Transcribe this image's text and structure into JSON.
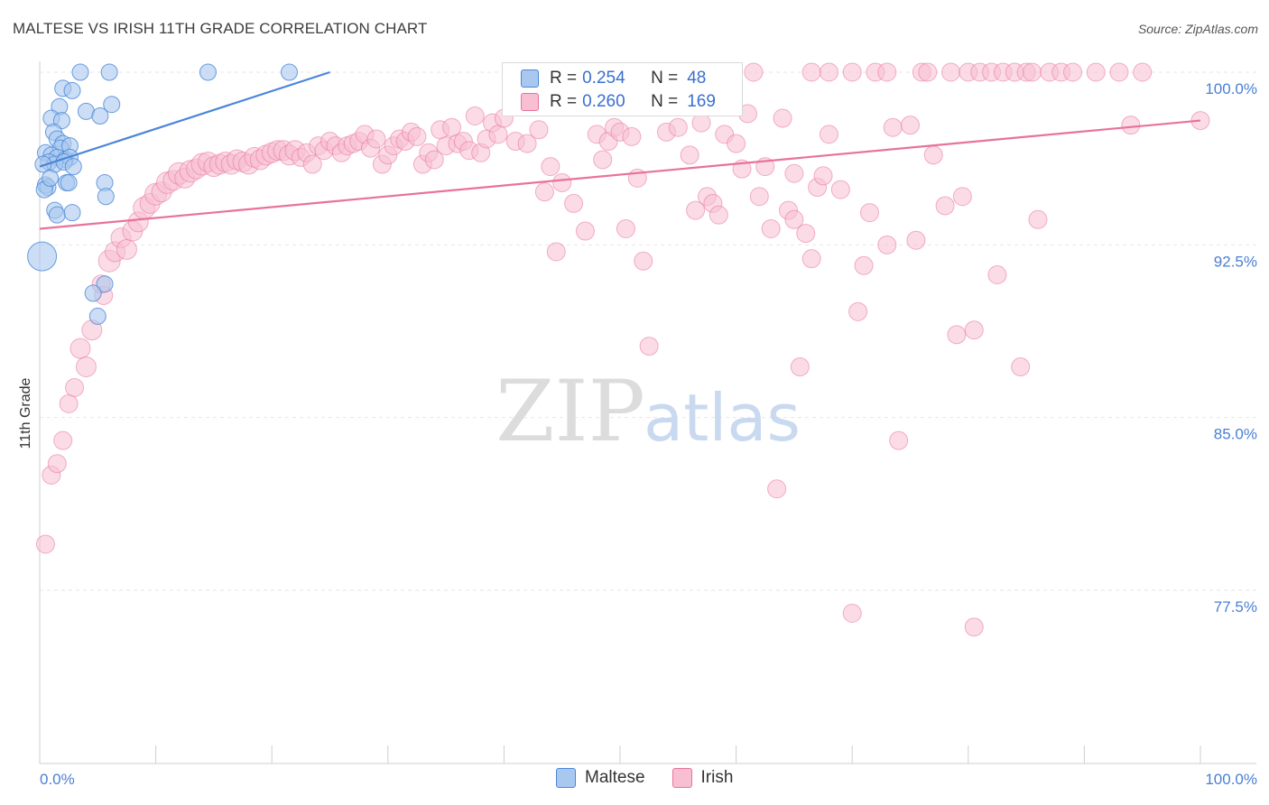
{
  "title": "MALTESE VS IRISH 11TH GRADE CORRELATION CHART",
  "source": "Source: ZipAtlas.com",
  "watermark": {
    "zip": "ZIP",
    "atlas": "atlas"
  },
  "legend": {
    "rows": [
      {
        "r_label": "R =",
        "r_value": "0.254",
        "n_label": "N =",
        "n_value": "48"
      },
      {
        "r_label": "R =",
        "r_value": "0.260",
        "n_label": "N =",
        "n_value": "169"
      }
    ]
  },
  "bottom_legend": {
    "maltese": "Maltese",
    "irish": "Irish"
  },
  "colors": {
    "maltese": "#4a86d8",
    "maltese_fill": "#a9c8ef",
    "irish": "#e8729a",
    "irish_fill": "#f7bfd1",
    "tick": "#4a7fd4"
  },
  "chart_data": {
    "type": "scatter",
    "title": "MALTESE VS IRISH 11TH GRADE CORRELATION CHART",
    "xlabel": "",
    "ylabel": "11th Grade",
    "xlim": [
      0,
      100
    ],
    "ylim": [
      70,
      101.5
    ],
    "x_tick_labels": [
      "0.0%",
      "100.0%"
    ],
    "y_ticks": [
      77.5,
      85.0,
      92.5,
      100.0
    ],
    "y_tick_labels": [
      "77.5%",
      "85.0%",
      "92.5%",
      "100.0%"
    ],
    "grid": true,
    "legend_position": "top-center",
    "series": [
      {
        "name": "Maltese",
        "trend": [
          [
            0,
            95.9
          ],
          [
            25,
            100
          ]
        ],
        "points": [
          [
            3.5,
            100,
            9
          ],
          [
            6,
            100,
            9
          ],
          [
            14.5,
            100,
            9
          ],
          [
            21.5,
            100,
            9
          ],
          [
            2,
            99.3,
            9
          ],
          [
            2.8,
            99.2,
            9
          ],
          [
            1.7,
            98.5,
            9
          ],
          [
            6.2,
            98.6,
            9
          ],
          [
            1,
            98,
            9
          ],
          [
            1.9,
            97.9,
            9
          ],
          [
            4,
            98.3,
            9
          ],
          [
            5.2,
            98.1,
            9
          ],
          [
            1.2,
            97.4,
            9
          ],
          [
            1.5,
            97.1,
            9
          ],
          [
            2,
            96.9,
            9
          ],
          [
            1.8,
            96.7,
            9
          ],
          [
            2.6,
            96.8,
            9
          ],
          [
            0.5,
            96.5,
            9
          ],
          [
            1,
            96.4,
            9
          ],
          [
            1.5,
            96.3,
            9
          ],
          [
            2.2,
            96.2,
            9
          ],
          [
            2.6,
            96.3,
            9
          ],
          [
            0.8,
            96.1,
            9
          ],
          [
            1.3,
            96.0,
            9
          ],
          [
            2.1,
            96.1,
            9
          ],
          [
            2.9,
            95.9,
            9
          ],
          [
            0.3,
            96.0,
            9
          ],
          [
            0.5,
            95.1,
            9
          ],
          [
            0.7,
            95.0,
            9
          ],
          [
            0.4,
            94.9,
            9
          ],
          [
            2.3,
            95.2,
            9
          ],
          [
            5.6,
            95.2,
            9
          ],
          [
            0.9,
            95.4,
            9
          ],
          [
            2.5,
            95.2,
            9
          ],
          [
            1.3,
            94.0,
            9
          ],
          [
            1.5,
            93.8,
            9
          ],
          [
            2.8,
            93.9,
            9
          ],
          [
            5.7,
            94.6,
            9
          ],
          [
            0.2,
            92.0,
            16
          ],
          [
            5.6,
            90.8,
            9
          ],
          [
            4.6,
            90.4,
            9
          ],
          [
            5,
            89.4,
            9
          ]
        ]
      },
      {
        "name": "Irish",
        "trend": [
          [
            0,
            93.2
          ],
          [
            100,
            97.9
          ]
        ],
        "points": [
          [
            0.5,
            79.5,
            10
          ],
          [
            1,
            82.5,
            10
          ],
          [
            1.5,
            83,
            10
          ],
          [
            2,
            84,
            10
          ],
          [
            2.5,
            85.6,
            10
          ],
          [
            3,
            86.3,
            10
          ],
          [
            3.5,
            88,
            11
          ],
          [
            4,
            87.2,
            11
          ],
          [
            4.5,
            88.8,
            11
          ],
          [
            5.5,
            90.3,
            10
          ],
          [
            5.3,
            90.8,
            10
          ],
          [
            6,
            91.8,
            12
          ],
          [
            6.5,
            92.2,
            11
          ],
          [
            7,
            92.8,
            11
          ],
          [
            7.5,
            92.3,
            11
          ],
          [
            8,
            93.1,
            11
          ],
          [
            8.5,
            93.5,
            11
          ],
          [
            9,
            94.1,
            12
          ],
          [
            9.5,
            94.3,
            11
          ],
          [
            10,
            94.7,
            12
          ],
          [
            10.5,
            94.8,
            11
          ],
          [
            11,
            95.2,
            12
          ],
          [
            11.5,
            95.3,
            11
          ],
          [
            12,
            95.6,
            12
          ],
          [
            12.5,
            95.4,
            11
          ],
          [
            13,
            95.7,
            12
          ],
          [
            13.5,
            95.8,
            11
          ],
          [
            14,
            96.0,
            12
          ],
          [
            14.5,
            96.1,
            11
          ],
          [
            15,
            95.9,
            11
          ],
          [
            15.5,
            96.0,
            11
          ],
          [
            16,
            96.1,
            11
          ],
          [
            16.5,
            96.0,
            11
          ],
          [
            17,
            96.2,
            11
          ],
          [
            17.5,
            96.1,
            11
          ],
          [
            18,
            96.0,
            11
          ],
          [
            18.5,
            96.3,
            11
          ],
          [
            19,
            96.2,
            11
          ],
          [
            19.5,
            96.4,
            11
          ],
          [
            20,
            96.5,
            11
          ],
          [
            20.5,
            96.6,
            11
          ],
          [
            21,
            96.6,
            11
          ],
          [
            21.5,
            96.4,
            11
          ],
          [
            22,
            96.6,
            11
          ],
          [
            22.5,
            96.3,
            10
          ],
          [
            23,
            96.5,
            10
          ],
          [
            23.5,
            96.0,
            10
          ],
          [
            24,
            96.8,
            10
          ],
          [
            24.5,
            96.6,
            10
          ],
          [
            25,
            97.0,
            10
          ],
          [
            25.5,
            96.8,
            10
          ],
          [
            26,
            96.5,
            10
          ],
          [
            26.5,
            96.8,
            10
          ],
          [
            27,
            96.9,
            10
          ],
          [
            27.5,
            97.0,
            10
          ],
          [
            28,
            97.3,
            10
          ],
          [
            28.5,
            96.7,
            10
          ],
          [
            29,
            97.1,
            10
          ],
          [
            29.5,
            96.0,
            10
          ],
          [
            30,
            96.4,
            10
          ],
          [
            30.5,
            96.8,
            10
          ],
          [
            31,
            97.1,
            10
          ],
          [
            31.5,
            97.0,
            10
          ],
          [
            32,
            97.4,
            10
          ],
          [
            32.5,
            97.2,
            10
          ],
          [
            33,
            96.0,
            10
          ],
          [
            33.5,
            96.5,
            10
          ],
          [
            34,
            96.2,
            10
          ],
          [
            34.5,
            97.5,
            10
          ],
          [
            35,
            96.8,
            10
          ],
          [
            35.5,
            97.6,
            10
          ],
          [
            36,
            96.9,
            10
          ],
          [
            36.5,
            97.0,
            10
          ],
          [
            37,
            96.6,
            10
          ],
          [
            37.5,
            98.1,
            10
          ],
          [
            38,
            96.5,
            10
          ],
          [
            38.5,
            97.1,
            10
          ],
          [
            39,
            97.8,
            10
          ],
          [
            39.5,
            97.3,
            10
          ],
          [
            40,
            98.0,
            10
          ],
          [
            41,
            97.0,
            10
          ],
          [
            42,
            96.9,
            10
          ],
          [
            43,
            97.5,
            10
          ],
          [
            44,
            95.9,
            10
          ],
          [
            45,
            95.2,
            10
          ],
          [
            46,
            94.3,
            10
          ],
          [
            47,
            93.1,
            10
          ],
          [
            43.5,
            94.8,
            10
          ],
          [
            44.5,
            92.2,
            10
          ],
          [
            47.5,
            99.3,
            10
          ],
          [
            48,
            97.3,
            10
          ],
          [
            48.5,
            96.2,
            10
          ],
          [
            49,
            97.0,
            10
          ],
          [
            49.5,
            97.6,
            10
          ],
          [
            50,
            97.4,
            10
          ],
          [
            51,
            97.2,
            10
          ],
          [
            51.5,
            95.4,
            10
          ],
          [
            50.5,
            93.2,
            10
          ],
          [
            52,
            91.8,
            10
          ],
          [
            52.5,
            88.1,
            10
          ],
          [
            53,
            98.5,
            10
          ],
          [
            54,
            97.4,
            10
          ],
          [
            55,
            97.6,
            10
          ],
          [
            55.5,
            99.4,
            10
          ],
          [
            56,
            96.4,
            10
          ],
          [
            56.5,
            94.0,
            10
          ],
          [
            57,
            97.8,
            10
          ],
          [
            57.5,
            94.6,
            10
          ],
          [
            58,
            94.3,
            10
          ],
          [
            58.5,
            93.8,
            10
          ],
          [
            59,
            97.3,
            10
          ],
          [
            59.5,
            99.8,
            10
          ],
          [
            60,
            96.9,
            10
          ],
          [
            60.5,
            95.8,
            10
          ],
          [
            61,
            98.2,
            10
          ],
          [
            61.5,
            100,
            10
          ],
          [
            62,
            94.6,
            10
          ],
          [
            63,
            93.2,
            10
          ],
          [
            64,
            98.0,
            10
          ],
          [
            64.5,
            94.0,
            10
          ],
          [
            65,
            93.6,
            10
          ],
          [
            65.5,
            87.2,
            10
          ],
          [
            66,
            93.0,
            10
          ],
          [
            66.5,
            100,
            10
          ],
          [
            67,
            95.0,
            10
          ],
          [
            68,
            100,
            10
          ],
          [
            69,
            94.9,
            10
          ],
          [
            70,
            100,
            10
          ],
          [
            70.5,
            89.6,
            10
          ],
          [
            71,
            91.6,
            10
          ],
          [
            71.5,
            93.9,
            10
          ],
          [
            72,
            100,
            10
          ],
          [
            73,
            100,
            10
          ],
          [
            73.5,
            97.6,
            10
          ],
          [
            74,
            84,
            10
          ],
          [
            75,
            97.7,
            10
          ],
          [
            75.5,
            92.7,
            10
          ],
          [
            76,
            100,
            10
          ],
          [
            76.5,
            100,
            10
          ],
          [
            78,
            94.2,
            10
          ],
          [
            78.5,
            100,
            10
          ],
          [
            79,
            88.6,
            10
          ],
          [
            79.5,
            94.6,
            10
          ],
          [
            80,
            100,
            10
          ],
          [
            80.5,
            88.8,
            10
          ],
          [
            81,
            100,
            10
          ],
          [
            82,
            100,
            10
          ],
          [
            82.5,
            91.2,
            10
          ],
          [
            83,
            100,
            10
          ],
          [
            84,
            100,
            10
          ],
          [
            84.5,
            87.2,
            10
          ],
          [
            85,
            100,
            10
          ],
          [
            85.5,
            100,
            10
          ],
          [
            86,
            93.6,
            10
          ],
          [
            87,
            100,
            10
          ],
          [
            88,
            100,
            10
          ],
          [
            89,
            100,
            10
          ],
          [
            91,
            100,
            10
          ],
          [
            93,
            100,
            10
          ],
          [
            95,
            100,
            10
          ],
          [
            94,
            97.7,
            10
          ],
          [
            100,
            97.9,
            10
          ],
          [
            63.5,
            81.9,
            10
          ],
          [
            70,
            76.5,
            10
          ],
          [
            80.5,
            75.9,
            10
          ],
          [
            65,
            95.6,
            10
          ],
          [
            66.5,
            91.9,
            10
          ],
          [
            73,
            92.5,
            10
          ],
          [
            67.5,
            95.5,
            10
          ],
          [
            68,
            97.3,
            10
          ],
          [
            62.5,
            95.9,
            10
          ],
          [
            77,
            96.4,
            10
          ],
          [
            41,
            100,
            10
          ],
          [
            44,
            100,
            10
          ],
          [
            45.5,
            100,
            10
          ],
          [
            46.5,
            100,
            10
          ]
        ]
      }
    ]
  }
}
